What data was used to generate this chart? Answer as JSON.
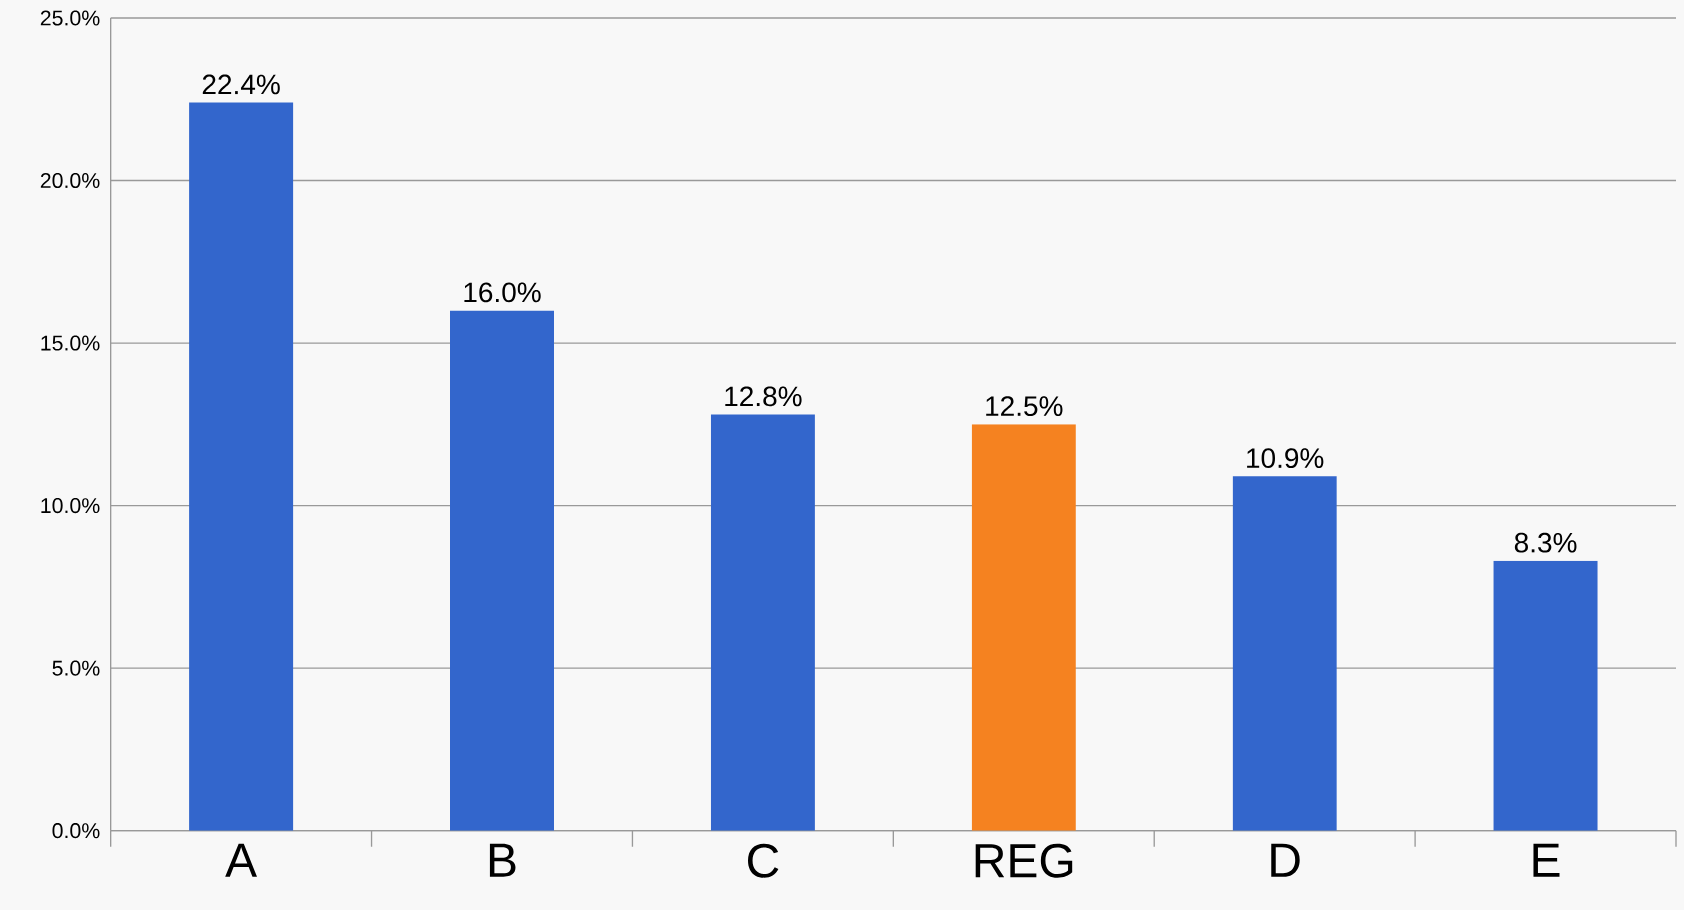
{
  "chart_data": {
    "type": "bar",
    "categories": [
      "A",
      "B",
      "C",
      "REG",
      "D",
      "E"
    ],
    "values": [
      22.4,
      16.0,
      12.8,
      12.5,
      10.9,
      8.3
    ],
    "colors": [
      "#3366cc",
      "#3366cc",
      "#3366cc",
      "#f58220",
      "#3366cc",
      "#3366cc"
    ],
    "value_labels": [
      "22.4%",
      "16.0%",
      "12.8%",
      "12.5%",
      "10.9%",
      "8.3%"
    ],
    "ylim": [
      0,
      25
    ],
    "yticks": [
      {
        "value": 0,
        "label": "0.0%"
      },
      {
        "value": 5,
        "label": "5.0%"
      },
      {
        "value": 10,
        "label": "10.0%"
      },
      {
        "value": 15,
        "label": "15.0%"
      },
      {
        "value": 20,
        "label": "20.0%"
      },
      {
        "value": 25,
        "label": "25.0%"
      }
    ],
    "grid": "y"
  }
}
